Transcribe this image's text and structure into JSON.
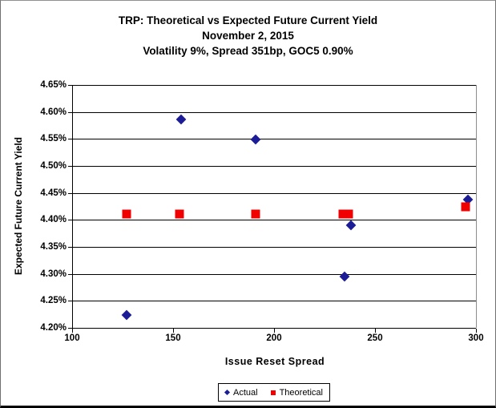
{
  "chart_data": {
    "type": "scatter",
    "title": "TRP: Theoretical vs Expected Future Current Yield",
    "title_lines": [
      "TRP: Theoretical vs Expected Future Current Yield",
      "November 2, 2015",
      "Volatility 9%, Spread 351bp, GOC5 0.90%"
    ],
    "xlabel": "Issue Reset Spread",
    "ylabel": "Expected Future Current Yield",
    "xlim": [
      100,
      300
    ],
    "ylim": [
      4.2,
      4.65
    ],
    "grid": "horizontal",
    "legend_position": "bottom-center",
    "xticks": [
      {
        "value": 100,
        "label": "100"
      },
      {
        "value": 150,
        "label": "150"
      },
      {
        "value": 200,
        "label": "200"
      },
      {
        "value": 250,
        "label": "250"
      },
      {
        "value": 300,
        "label": "300"
      }
    ],
    "yticks": [
      {
        "value": 4.2,
        "label": "4.20%"
      },
      {
        "value": 4.25,
        "label": "4.25%"
      },
      {
        "value": 4.3,
        "label": "4.30%"
      },
      {
        "value": 4.35,
        "label": "4.35%"
      },
      {
        "value": 4.4,
        "label": "4.40%"
      },
      {
        "value": 4.45,
        "label": "4.45%"
      },
      {
        "value": 4.5,
        "label": "4.50%"
      },
      {
        "value": 4.55,
        "label": "4.55%"
      },
      {
        "value": 4.6,
        "label": "4.60%"
      },
      {
        "value": 4.65,
        "label": "4.65%"
      }
    ],
    "series": [
      {
        "name": "Actual",
        "marker": "diamond",
        "color": "#1c1c96",
        "points": [
          [
            127,
            4.224
          ],
          [
            154,
            4.586
          ],
          [
            191,
            4.549
          ],
          [
            235,
            4.295
          ],
          [
            238,
            4.39
          ],
          [
            296,
            4.437
          ]
        ]
      },
      {
        "name": "Theoretical",
        "marker": "square",
        "color": "#f00000",
        "points": [
          [
            127,
            4.411
          ],
          [
            153,
            4.411
          ],
          [
            191,
            4.411
          ],
          [
            234,
            4.411
          ],
          [
            237,
            4.411
          ],
          [
            295,
            4.425
          ]
        ]
      }
    ]
  }
}
